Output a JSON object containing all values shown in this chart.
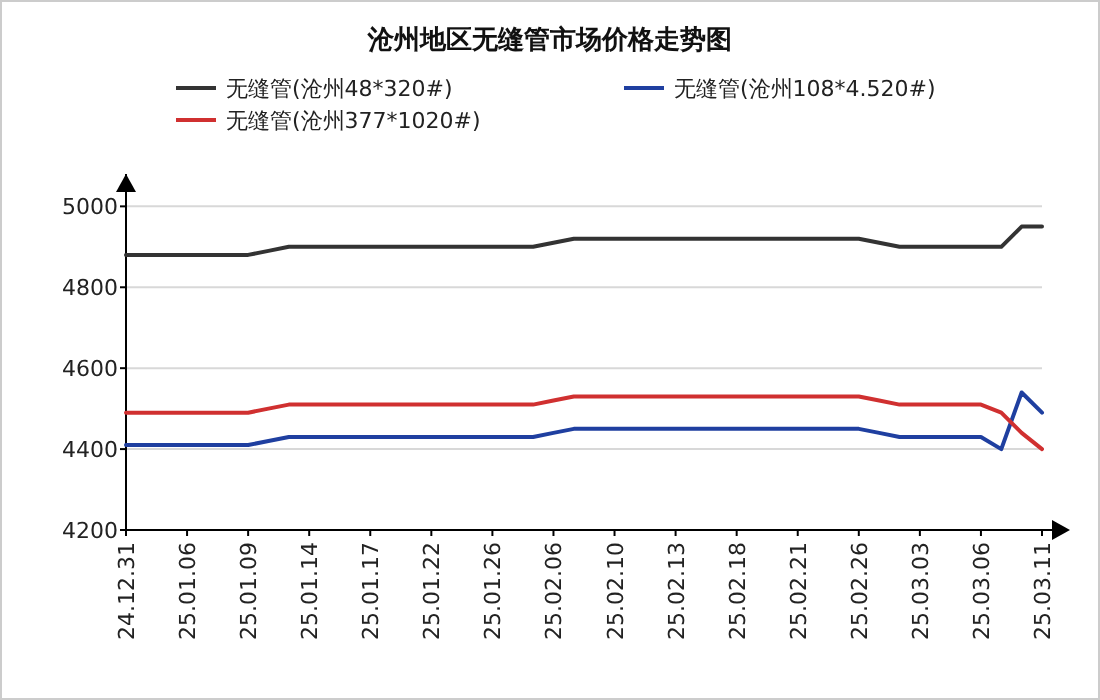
{
  "chart_data": {
    "type": "line",
    "title": "沧州地区无缝管市场价格走势图",
    "categories": [
      "24.12.31",
      null,
      null,
      "25.01.06",
      null,
      null,
      "25.01.09",
      null,
      null,
      "25.01.14",
      null,
      null,
      "25.01.17",
      null,
      null,
      "25.01.22",
      null,
      null,
      "25.01.26",
      null,
      null,
      "25.02.06",
      null,
      null,
      "25.02.10",
      null,
      null,
      "25.02.13",
      null,
      null,
      "25.02.18",
      null,
      null,
      "25.02.21",
      null,
      null,
      "25.02.26",
      null,
      null,
      "25.03.03",
      null,
      null,
      "25.03.06",
      null,
      null,
      "25.03.11"
    ],
    "series": [
      {
        "name": "无缝管(沧州48*320#)",
        "color": "#333333",
        "values": [
          4880,
          4880,
          4880,
          4880,
          4880,
          4880,
          4880,
          4890,
          4900,
          4900,
          4900,
          4900,
          4900,
          4900,
          4900,
          4900,
          4900,
          4900,
          4900,
          4900,
          4900,
          4910,
          4920,
          4920,
          4920,
          4920,
          4920,
          4920,
          4920,
          4920,
          4920,
          4920,
          4920,
          4920,
          4920,
          4920,
          4920,
          4910,
          4900,
          4900,
          4900,
          4900,
          4900,
          4900,
          4950,
          4950
        ]
      },
      {
        "name": "无缝管(沧州108*4.520#)",
        "color": "#1f3fa0",
        "values": [
          4410,
          4410,
          4410,
          4410,
          4410,
          4410,
          4410,
          4420,
          4430,
          4430,
          4430,
          4430,
          4430,
          4430,
          4430,
          4430,
          4430,
          4430,
          4430,
          4430,
          4430,
          4440,
          4450,
          4450,
          4450,
          4450,
          4450,
          4450,
          4450,
          4450,
          4450,
          4450,
          4450,
          4450,
          4450,
          4450,
          4450,
          4440,
          4430,
          4430,
          4430,
          4430,
          4430,
          4400,
          4540,
          4490
        ]
      },
      {
        "name": "无缝管(沧州377*1020#)",
        "color": "#d03030",
        "values": [
          4490,
          4490,
          4490,
          4490,
          4490,
          4490,
          4490,
          4500,
          4510,
          4510,
          4510,
          4510,
          4510,
          4510,
          4510,
          4510,
          4510,
          4510,
          4510,
          4510,
          4510,
          4520,
          4530,
          4530,
          4530,
          4530,
          4530,
          4530,
          4530,
          4530,
          4530,
          4530,
          4530,
          4530,
          4530,
          4530,
          4530,
          4520,
          4510,
          4510,
          4510,
          4510,
          4510,
          4490,
          4440,
          4400
        ]
      }
    ],
    "ylim": [
      4200,
      5080
    ],
    "yticks": [
      4200,
      4400,
      4600,
      4800,
      5000
    ],
    "grid": "y",
    "legend": "top",
    "marker": "none",
    "line_style": "solid"
  }
}
